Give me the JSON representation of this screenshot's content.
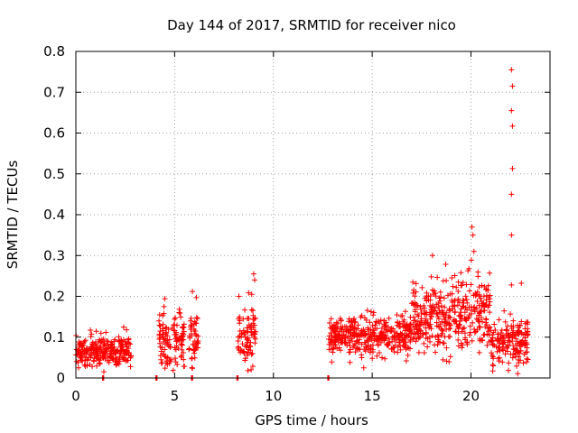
{
  "chart_data": {
    "type": "scatter",
    "title": "Day 144 of 2017, SRMTID for receiver nico",
    "xlabel": "GPS time / hours",
    "ylabel": "SRMTID / TECUs",
    "xlim": [
      0,
      24
    ],
    "ylim": [
      0,
      0.8
    ],
    "xticks": [
      0,
      5,
      10,
      15,
      20
    ],
    "xtick_labels": [
      "0",
      "5",
      "10",
      "15",
      "20"
    ],
    "yticks": [
      0,
      0.1,
      0.2,
      0.3,
      0.4,
      0.5,
      0.6,
      0.7,
      0.8
    ],
    "ytick_labels": [
      "0",
      "0.1",
      "0.2",
      "0.3",
      "0.4",
      "0.5",
      "0.6",
      "0.7",
      "0.8"
    ],
    "grid": true,
    "marker": "+",
    "color": "#ff0000",
    "data_segments": [
      {
        "start": 0.0,
        "end": 2.8,
        "mean": 0.065,
        "spread": 0.02
      },
      {
        "start": 4.2,
        "end": 5.5,
        "mean": 0.09,
        "spread": 0.035
      },
      {
        "start": 5.7,
        "end": 6.2,
        "mean": 0.095,
        "spread": 0.035
      },
      {
        "start": 8.2,
        "end": 9.1,
        "mean": 0.1,
        "spread": 0.04
      },
      {
        "start": 12.8,
        "end": 17.0,
        "mean": 0.1,
        "spread": 0.025
      },
      {
        "start": 17.0,
        "end": 20.0,
        "mean": 0.15,
        "spread": 0.045
      },
      {
        "start": 20.0,
        "end": 21.0,
        "mean": 0.17,
        "spread": 0.05
      },
      {
        "start": 21.0,
        "end": 22.9,
        "mean": 0.09,
        "spread": 0.03
      }
    ],
    "notable_points": [
      {
        "x": 22.05,
        "y": 0.755
      },
      {
        "x": 22.1,
        "y": 0.715
      },
      {
        "x": 22.05,
        "y": 0.655
      },
      {
        "x": 22.1,
        "y": 0.617
      },
      {
        "x": 22.1,
        "y": 0.513
      },
      {
        "x": 22.05,
        "y": 0.45
      },
      {
        "x": 22.05,
        "y": 0.35
      },
      {
        "x": 22.05,
        "y": 0.228
      },
      {
        "x": 20.05,
        "y": 0.37
      },
      {
        "x": 20.1,
        "y": 0.35
      },
      {
        "x": 20.15,
        "y": 0.31
      },
      {
        "x": 18.05,
        "y": 0.3
      },
      {
        "x": 9.0,
        "y": 0.255
      },
      {
        "x": 9.05,
        "y": 0.24
      },
      {
        "x": 8.9,
        "y": 0.205
      },
      {
        "x": 6.1,
        "y": 0.197
      },
      {
        "x": 22.55,
        "y": 0.232
      }
    ],
    "zero_points": [
      1.35,
      4.05,
      5.85,
      8.15,
      12.75
    ]
  }
}
